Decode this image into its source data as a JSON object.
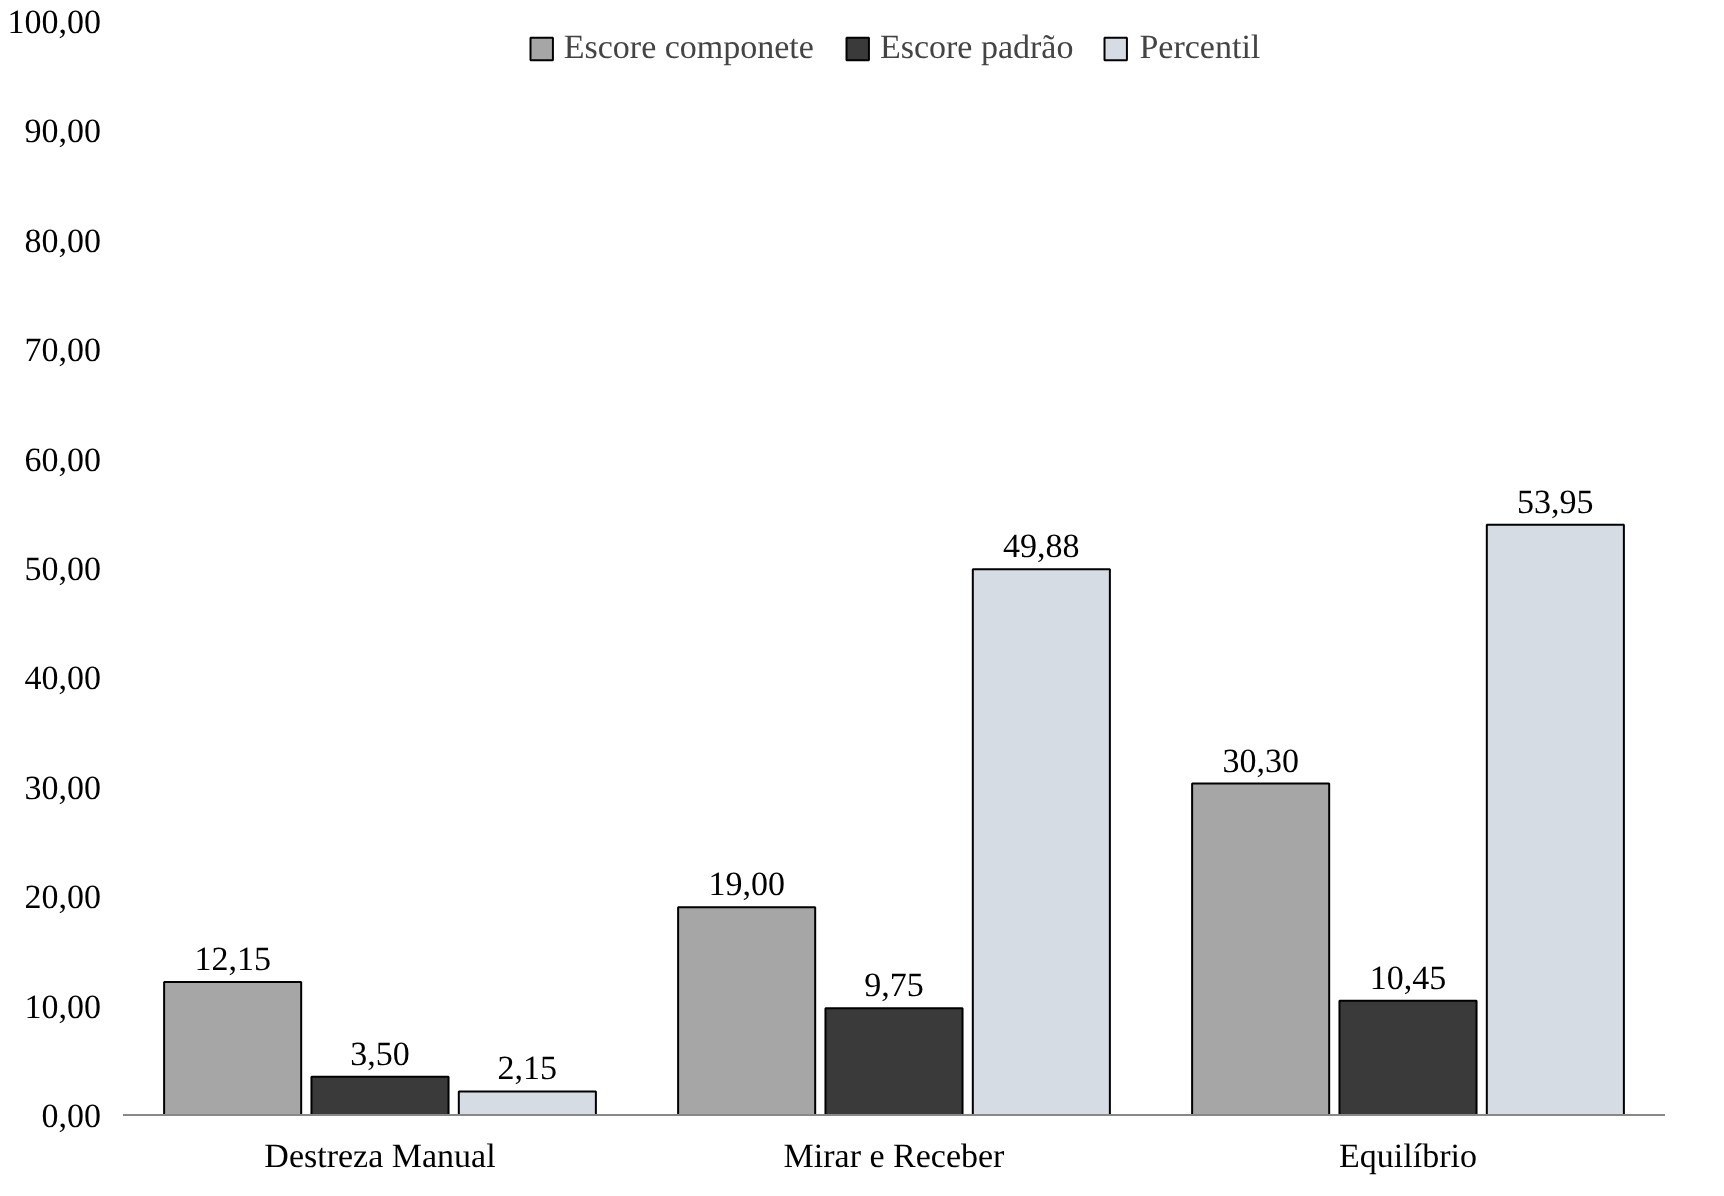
{
  "chart_data": {
    "type": "bar",
    "categories": [
      "Destreza Manual",
      "Mirar e Receber",
      "Equilíbrio"
    ],
    "series": [
      {
        "name": "Escore componete",
        "color": "#a6a6a6",
        "values": [
          12.15,
          19.0,
          30.3
        ],
        "value_labels": [
          "12,15",
          "19,00",
          "30,30"
        ]
      },
      {
        "name": "Escore padrão",
        "color": "#3a3a3a",
        "values": [
          3.5,
          9.75,
          10.45
        ],
        "value_labels": [
          "3,50",
          "9,75",
          "10,45"
        ]
      },
      {
        "name": "Percentil",
        "color": "#d6dce4",
        "values": [
          2.15,
          49.88,
          53.95
        ],
        "value_labels": [
          "2,15",
          "49,88",
          "53,95"
        ]
      }
    ],
    "ylim": [
      0,
      100
    ],
    "yticks": [
      {
        "value": 0,
        "label": "0,00"
      },
      {
        "value": 10,
        "label": "10,00"
      },
      {
        "value": 20,
        "label": "20,00"
      },
      {
        "value": 30,
        "label": "30,00"
      },
      {
        "value": 40,
        "label": "40,00"
      },
      {
        "value": 50,
        "label": "50,00"
      },
      {
        "value": 60,
        "label": "60,00"
      },
      {
        "value": 70,
        "label": "70,00"
      },
      {
        "value": 80,
        "label": "80,00"
      },
      {
        "value": 90,
        "label": "90,00"
      },
      {
        "value": 100,
        "label": "100,00"
      }
    ],
    "grid": false,
    "legend": "top"
  }
}
